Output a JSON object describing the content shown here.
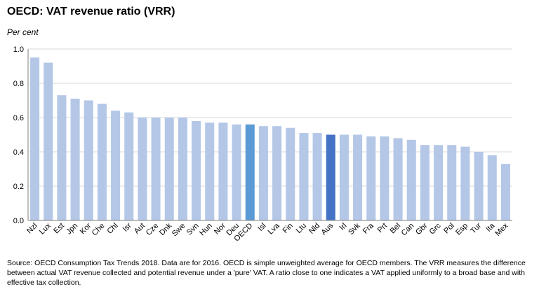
{
  "title": "OECD: VAT revenue ratio (VRR)",
  "unit_label": "Per cent",
  "source_note": "Source: OECD Consumption Tax Trends 2018.  Data are for 2016.  OECD is simple unweighted average for OECD members. The VRR measures the difference between actual VAT revenue collected and potential revenue under a 'pure' VAT.  A ratio close to one indicates a VAT applied uniformly to a broad base and with effective tax collection.",
  "colors": {
    "bar": "#b4c7e7",
    "oecd": "#5b9bd5",
    "aus": "#4472c4",
    "grid": "#d9d9d9",
    "axis": "#808080"
  },
  "chart_data": {
    "type": "bar",
    "title": "OECD: VAT revenue ratio (VRR)",
    "ylabel": "Per cent",
    "ylim": [
      0,
      1.0
    ],
    "yticks": [
      "0.0",
      "0.2",
      "0.4",
      "0.6",
      "0.8",
      "1.0"
    ],
    "ytick_values": [
      0,
      0.2,
      0.4,
      0.6,
      0.8,
      1.0
    ],
    "grid": true,
    "categories": [
      "Nzl",
      "Lux",
      "Est",
      "Jpn",
      "Kor",
      "Che",
      "Chl",
      "Isr",
      "Aut",
      "Cze",
      "Dnk",
      "Swe",
      "Svn",
      "Hun",
      "Nor",
      "Deu",
      "OECD",
      "Isl",
      "Lva",
      "Fin",
      "Ltu",
      "Nld",
      "Aus",
      "Irl",
      "Svk",
      "Fra",
      "Prt",
      "Bel",
      "Can",
      "Gbr",
      "Grc",
      "Pol",
      "Esp",
      "Tur",
      "Ita",
      "Mex"
    ],
    "values": [
      0.95,
      0.92,
      0.73,
      0.71,
      0.7,
      0.68,
      0.64,
      0.63,
      0.6,
      0.6,
      0.6,
      0.6,
      0.58,
      0.57,
      0.57,
      0.56,
      0.56,
      0.55,
      0.55,
      0.54,
      0.51,
      0.51,
      0.5,
      0.5,
      0.5,
      0.49,
      0.49,
      0.48,
      0.47,
      0.44,
      0.44,
      0.44,
      0.43,
      0.4,
      0.38,
      0.33
    ],
    "highlight": {
      "OECD": "oecd",
      "Aus": "aus"
    }
  }
}
